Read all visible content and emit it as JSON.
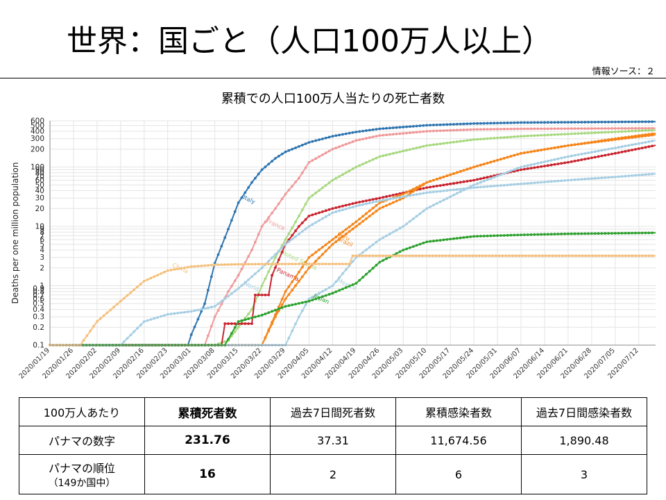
{
  "slide": {
    "title": "世界：国ごと（人口100万人以上）",
    "source": "情報ソース：２"
  },
  "chart_data": {
    "type": "line",
    "title": "累積での人口100万人当たりの死亡者数",
    "ylabel": "Deaths per one million population",
    "xlabel": "",
    "yscale": "log",
    "ylim": [
      0.1,
      600
    ],
    "grid": true,
    "x_tick_labels": [
      "2020/01/19",
      "2020/01/26",
      "2020/02/02",
      "2020/02/09",
      "2020/02/16",
      "2020/02/23",
      "2020/03/01",
      "2020/03/08",
      "2020/03/15",
      "2020/03/22",
      "2020/03/29",
      "2020/04/05",
      "2020/04/12",
      "2020/04/19",
      "2020/04/26",
      "2020/05/03",
      "2020/05/10",
      "2020/05/17",
      "2020/05/24",
      "2020/05/31",
      "2020/06/07",
      "2020/06/14",
      "2020/06/21",
      "2020/06/28",
      "2020/07/05",
      "2020/07/12"
    ],
    "y_tick_labels": [
      "0.1",
      "0.2",
      "0.3",
      "0.4",
      "0.5",
      "0.6",
      "0.7",
      "0.8",
      "0.9",
      "1",
      "2",
      "3",
      "4",
      "5",
      "6",
      "7",
      "8",
      "9",
      "10",
      "20",
      "30",
      "40",
      "50",
      "60",
      "70",
      "80",
      "90",
      "100",
      "200",
      "300",
      "400",
      "500",
      "600"
    ],
    "series": [
      {
        "name": "Italy",
        "color": "#2e75b0",
        "x": [
          "2020/01/19",
          "2020/02/29",
          "2020/03/01",
          "2020/03/05",
          "2020/03/08",
          "2020/03/12",
          "2020/03/15",
          "2020/03/19",
          "2020/03/22",
          "2020/03/26",
          "2020/03/29",
          "2020/04/05",
          "2020/04/12",
          "2020/04/19",
          "2020/04/26",
          "2020/05/10",
          "2020/05/24",
          "2020/06/07",
          "2020/07/17"
        ],
        "y": [
          0.1,
          0.1,
          0.15,
          0.5,
          2.4,
          9,
          25,
          55,
          90,
          140,
          180,
          260,
          330,
          390,
          440,
          505,
          540,
          560,
          580
        ]
      },
      {
        "name": "France",
        "color": "#f0999a",
        "x": [
          "2020/01/19",
          "2020/03/05",
          "2020/03/08",
          "2020/03/12",
          "2020/03/15",
          "2020/03/19",
          "2020/03/22",
          "2020/03/26",
          "2020/03/29",
          "2020/04/02",
          "2020/04/05",
          "2020/04/12",
          "2020/04/19",
          "2020/04/26",
          "2020/05/10",
          "2020/05/24",
          "2020/06/07",
          "2020/07/17"
        ],
        "y": [
          0.1,
          0.1,
          0.3,
          0.8,
          1.5,
          4,
          10,
          20,
          35,
          65,
          120,
          200,
          280,
          340,
          400,
          430,
          440,
          450
        ]
      },
      {
        "name": "United States",
        "color": "#a8d87e",
        "x": [
          "2020/01/19",
          "2020/03/08",
          "2020/03/12",
          "2020/03/15",
          "2020/03/19",
          "2020/03/22",
          "2020/03/26",
          "2020/03/29",
          "2020/04/02",
          "2020/04/05",
          "2020/04/12",
          "2020/04/19",
          "2020/04/26",
          "2020/05/10",
          "2020/05/24",
          "2020/06/07",
          "2020/06/21",
          "2020/07/17"
        ],
        "y": [
          0.1,
          0.1,
          0.12,
          0.2,
          0.4,
          1,
          3,
          6,
          15,
          30,
          60,
          100,
          150,
          230,
          290,
          330,
          360,
          420
        ]
      },
      {
        "name": "Panama",
        "color": "#c8232c",
        "x": [
          "2020/01/19",
          "2020/03/10",
          "2020/03/11",
          "2020/03/19",
          "2020/03/20",
          "2020/03/24",
          "2020/03/25",
          "2020/03/29",
          "2020/04/02",
          "2020/04/05",
          "2020/04/12",
          "2020/04/19",
          "2020/04/26",
          "2020/05/10",
          "2020/05/24",
          "2020/06/07",
          "2020/06/21",
          "2020/07/05",
          "2020/07/17"
        ],
        "y": [
          0.1,
          0.1,
          0.23,
          0.23,
          0.7,
          0.7,
          1.5,
          5,
          10,
          15,
          20,
          25,
          30,
          45,
          60,
          90,
          120,
          170,
          232
        ]
      },
      {
        "name": "Brazil",
        "color": "#f58518",
        "x": [
          "2020/01/19",
          "2020/03/22",
          "2020/03/26",
          "2020/03/29",
          "2020/04/05",
          "2020/04/12",
          "2020/04/19",
          "2020/04/26",
          "2020/05/03",
          "2020/05/10",
          "2020/05/24",
          "2020/06/07",
          "2020/06/21",
          "2020/07/05",
          "2020/07/17"
        ],
        "y": [
          0.1,
          0.1,
          0.3,
          0.6,
          2,
          5,
          10,
          20,
          30,
          55,
          100,
          170,
          230,
          290,
          350
        ]
      },
      {
        "name": "Peru",
        "color": "#f58518",
        "x": [
          "2020/01/19",
          "2020/03/22",
          "2020/03/29",
          "2020/04/05",
          "2020/04/12",
          "2020/04/19",
          "2020/04/26",
          "2020/05/03",
          "2020/05/10",
          "2020/05/24",
          "2020/06/07",
          "2020/06/21",
          "2020/07/05",
          "2020/07/17"
        ],
        "y": [
          0.1,
          0.1,
          0.8,
          3,
          6,
          12,
          25,
          35,
          55,
          100,
          170,
          230,
          300,
          370
        ]
      },
      {
        "name": "Mexico",
        "color": "#a6cee3",
        "x": [
          "2020/01/19",
          "2020/03/29",
          "2020/04/02",
          "2020/04/05",
          "2020/04/12",
          "2020/04/19",
          "2020/04/26",
          "2020/05/03",
          "2020/05/10",
          "2020/05/24",
          "2020/06/07",
          "2020/06/21",
          "2020/07/05",
          "2020/07/17"
        ],
        "y": [
          0.1,
          0.1,
          0.3,
          0.6,
          1,
          3,
          6,
          10,
          20,
          50,
          100,
          150,
          210,
          280
        ]
      },
      {
        "name": "World",
        "color": "#a6cee3",
        "x": [
          "2020/01/19",
          "2020/02/09",
          "2020/02/16",
          "2020/02/23",
          "2020/03/01",
          "2020/03/08",
          "2020/03/15",
          "2020/03/22",
          "2020/03/29",
          "2020/04/05",
          "2020/04/12",
          "2020/04/19",
          "2020/04/26",
          "2020/05/10",
          "2020/05/24",
          "2020/06/07",
          "2020/06/21",
          "2020/07/05",
          "2020/07/17"
        ],
        "y": [
          0.1,
          0.1,
          0.25,
          0.33,
          0.37,
          0.45,
          0.9,
          2,
          5,
          10,
          17,
          22,
          27,
          37,
          45,
          52,
          60,
          68,
          77
        ]
      },
      {
        "name": "Japan",
        "color": "#2ca02c",
        "x": [
          "2020/01/19",
          "2020/03/11",
          "2020/03/15",
          "2020/03/22",
          "2020/03/29",
          "2020/04/05",
          "2020/04/12",
          "2020/04/19",
          "2020/04/26",
          "2020/05/03",
          "2020/05/10",
          "2020/05/24",
          "2020/06/07",
          "2020/06/21",
          "2020/07/17"
        ],
        "y": [
          0.1,
          0.1,
          0.25,
          0.32,
          0.45,
          0.55,
          0.75,
          1.1,
          2.5,
          4,
          5.5,
          6.8,
          7.2,
          7.5,
          7.8
        ]
      },
      {
        "name": "China",
        "color": "#f5c07d",
        "x": [
          "2020/01/19",
          "2020/01/28",
          "2020/02/02",
          "2020/02/09",
          "2020/02/16",
          "2020/02/23",
          "2020/03/01",
          "2020/03/08",
          "2020/03/15",
          "2020/03/22",
          "2020/03/29",
          "2020/04/05",
          "2020/04/12",
          "2020/04/17",
          "2020/04/18",
          "2020/07/17"
        ],
        "y": [
          0.1,
          0.1,
          0.25,
          0.55,
          1.2,
          1.8,
          2.1,
          2.25,
          2.3,
          2.32,
          2.33,
          2.33,
          2.33,
          2.33,
          3.2,
          3.2
        ]
      }
    ]
  },
  "table": {
    "header": [
      "100万人あたり",
      "累積死者数",
      "過去7日間死者数",
      "累積感染者数",
      "過去7日間感染者数"
    ],
    "row1": [
      "パナマの数字",
      "231.76",
      "37.31",
      "11,674.56",
      "1,890.48"
    ],
    "row2": {
      "label": "パナマの順位",
      "label_sub": "（149か国中）",
      "values": [
        "16",
        "2",
        "6",
        "3"
      ]
    }
  }
}
